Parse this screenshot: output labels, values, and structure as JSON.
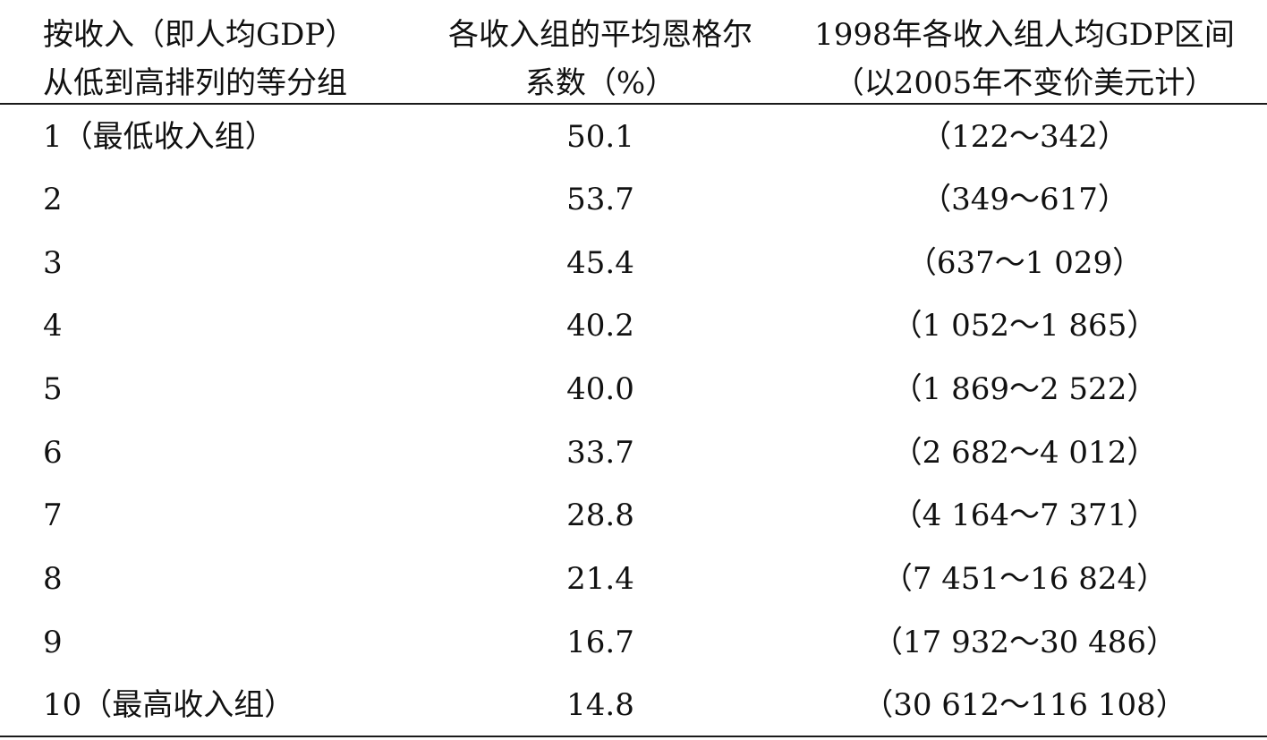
{
  "headers": {
    "col1": [
      "按收入（即人均GDP）",
      "从低到高排列的等分组"
    ],
    "col2": [
      "各收入组的平均恩格尔",
      "系数（%）"
    ],
    "col3": [
      "1998年各收入组人均GDP区间",
      "（以2005年不变价美元计）"
    ]
  },
  "rows": [
    {
      "group": "1（最低收入组）",
      "engel": "50.1",
      "range": "（122～342）"
    },
    {
      "group": "2",
      "engel": "53.7",
      "range": "（349～617）"
    },
    {
      "group": "3",
      "engel": "45.4",
      "range": "（637～1 029）"
    },
    {
      "group": "4",
      "engel": "40.2",
      "range": "（1 052～1 865）"
    },
    {
      "group": "5",
      "engel": "40.0",
      "range": "（1 869～2 522）"
    },
    {
      "group": "6",
      "engel": "33.7",
      "range": "（2 682～4 012）"
    },
    {
      "group": "7",
      "engel": "28.8",
      "range": "（4 164～7 371）"
    },
    {
      "group": "8",
      "engel": "21.4",
      "range": "（7 451～16 824）"
    },
    {
      "group": "9",
      "engel": "16.7",
      "range": "（17 932～30 486）"
    },
    {
      "group": "10（最高收入组）",
      "engel": "14.8",
      "range": "（30 612～116 108）"
    }
  ]
}
